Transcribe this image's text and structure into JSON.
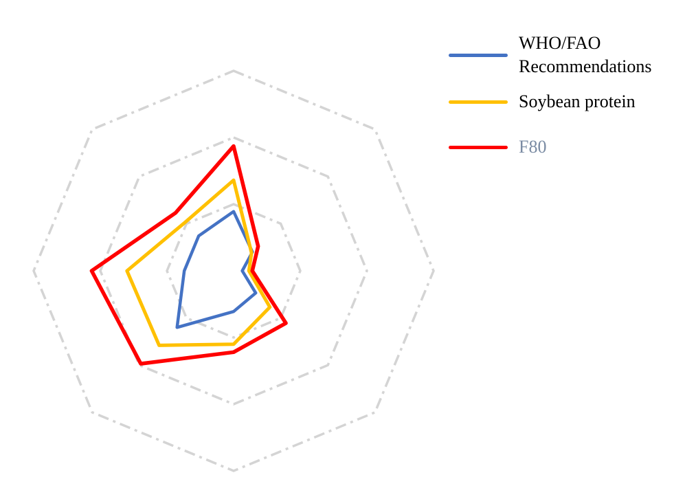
{
  "figure": {
    "background": "#ffffff"
  },
  "legend": {
    "position": "top-right",
    "items": [
      {
        "label": "WHO/FAO Recommendations",
        "swatch_color": "#4472C4",
        "label_color": "#000000"
      },
      {
        "label": "Soybean protein",
        "swatch_color": "#FFC000",
        "label_color": "#000000"
      },
      {
        "label": "F80",
        "swatch_color": "#FF0000",
        "label_color": "#7A8BA3"
      }
    ]
  },
  "chart_data": {
    "type": "radar",
    "title": "",
    "axes": [
      "",
      "",
      "",
      "",
      "",
      "",
      "",
      ""
    ],
    "axes_note": "8 unlabeled spokes; first spoke points up, remaining spokes clockwise; no axis or tick labels are rendered",
    "scale": {
      "gridline_values": [
        1,
        2,
        3
      ],
      "max": 3,
      "tick_labels_shown": false
    },
    "gridline_color": "#D4D4D4",
    "gridline_style": "dash-dot",
    "grid_shape": "octagon",
    "legend_position": "top-right",
    "series": [
      {
        "name": "WHO/FAO Recommendations",
        "color": "#4472C4",
        "values": [
          0.89,
          0.4,
          0.13,
          0.47,
          0.61,
          1.2,
          0.74,
          0.74
        ]
      },
      {
        "name": "Soybean protein",
        "color": "#FFC000",
        "values": [
          1.36,
          0.38,
          0.23,
          0.77,
          1.1,
          1.58,
          1.6,
          1.03
        ]
      },
      {
        "name": "F80",
        "color": "#FF0000",
        "values": [
          1.87,
          0.52,
          0.28,
          1.11,
          1.22,
          1.97,
          2.13,
          1.23
        ]
      }
    ]
  }
}
